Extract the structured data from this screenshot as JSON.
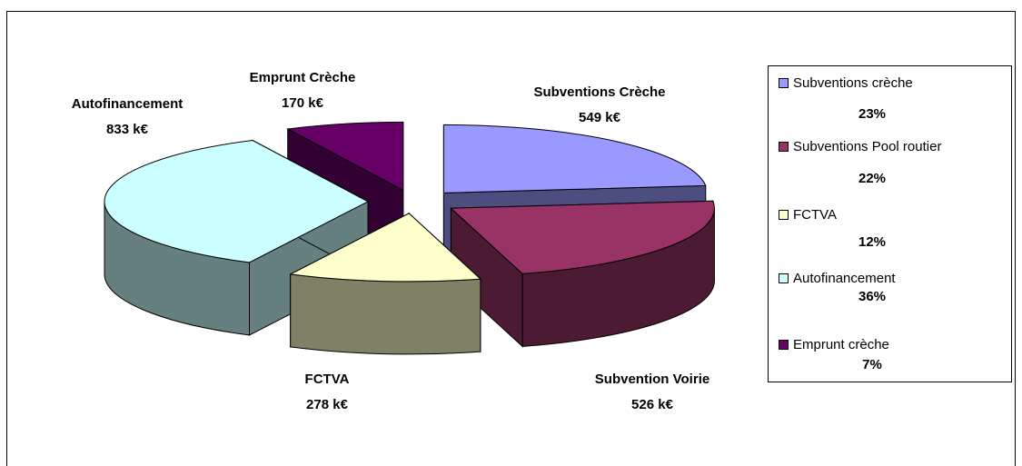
{
  "chart_data": {
    "type": "pie",
    "categories": [
      "Subventions Crèche",
      "Subvention Voirie",
      "FCTVA",
      "Autofinancement",
      "Emprunt Crèche"
    ],
    "values": [
      549,
      526,
      278,
      833,
      170
    ],
    "value_labels": [
      "549 k€",
      "526 k€",
      "278 k€",
      "833 k€",
      "170 k€"
    ],
    "colors": [
      "#9999ff",
      "#993366",
      "#ffffcc",
      "#ccffff",
      "#660066"
    ],
    "legend": [
      "Subventions crèche",
      "Subventions Pool routier",
      "FCTVA",
      "Autofinancement",
      "Emprunt crèche"
    ],
    "percentages": [
      23,
      22,
      12,
      36,
      7
    ],
    "percentage_labels": [
      "23%",
      "22%",
      "12%",
      "36%",
      "7%"
    ],
    "legend_position": "right"
  }
}
